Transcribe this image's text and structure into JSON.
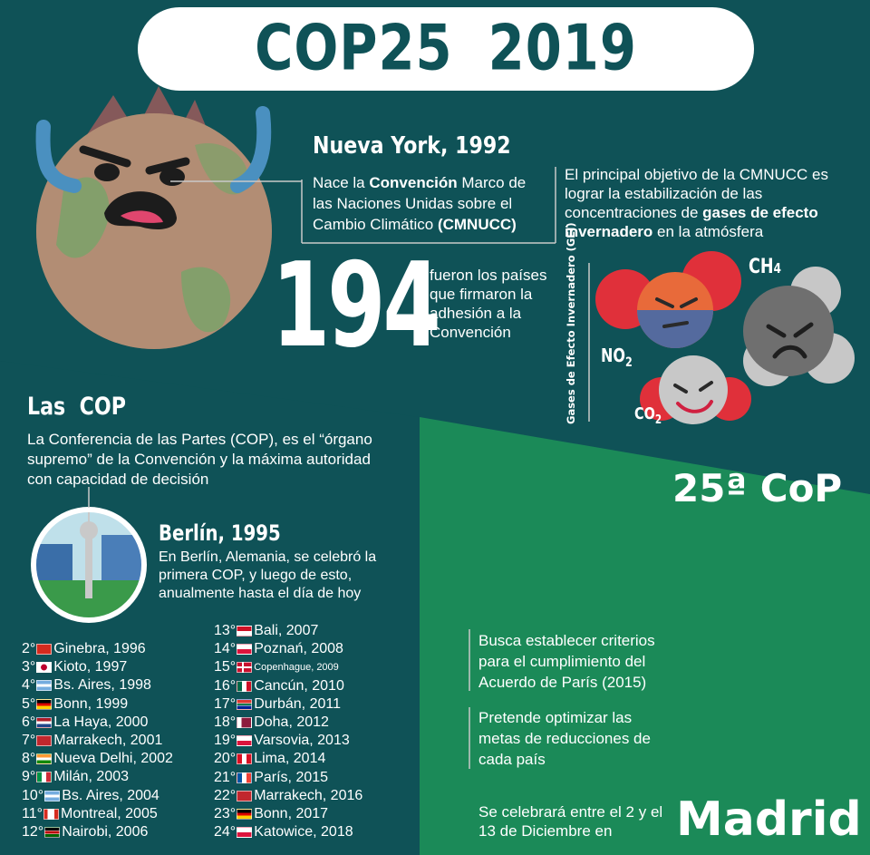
{
  "title": "COP25  2019",
  "nueva_york": {
    "heading": "Nueva York, 1992",
    "text_pre": "Nace la ",
    "text_bold1": "Convención",
    "text_mid": " Marco de las Naciones Unidas sobre el Cambio Climático ",
    "text_bold2": "(CMNUCC)"
  },
  "objective": {
    "text_pre": "El principal objetivo de la CMNUCC es lograr la estabilización de las concentraciones de ",
    "text_bold": "gases de efecto invernadero",
    "text_post": " en la atmósfera"
  },
  "count": {
    "number": "194",
    "text": "fueron los países que firmaron la adhesión a la Convención"
  },
  "gases": {
    "vertical_label": "Gases de Efecto Invernadero (GEI)",
    "ch4": "CH",
    "ch4_sub": "4",
    "no2": "NO",
    "no2_sub": "2",
    "co2": "CO",
    "co2_sub": "2"
  },
  "las_cop": {
    "heading": "Las  COP",
    "text": "La Conferencia de las Partes (COP), es el “órgano supremo” de la Convención y la máxima autoridad con capacidad de decisión"
  },
  "berlin": {
    "heading": "Berlín, 1995",
    "text": "En Berlín, Alemania, se celebró la primera COP, y luego de esto, anualmente hasta el día de hoy"
  },
  "cop25_label": "25ª CoP",
  "cop_list_left": [
    {
      "num": "2°",
      "place": "Ginebra, 1996",
      "flag": "switzerland"
    },
    {
      "num": "3°",
      "place": "Kioto, 1997",
      "flag": "japan"
    },
    {
      "num": "4°",
      "place": "Bs. Aires, 1998",
      "flag": "argentina"
    },
    {
      "num": "5°",
      "place": "Bonn, 1999",
      "flag": "germany"
    },
    {
      "num": "6°",
      "place": "La Haya, 2000",
      "flag": "netherlands"
    },
    {
      "num": "7°",
      "place": "Marrakech, 2001",
      "flag": "morocco"
    },
    {
      "num": "8°",
      "place": "Nueva Delhi, 2002",
      "flag": "india"
    },
    {
      "num": "9°",
      "place": "Milán, 2003",
      "flag": "italy"
    },
    {
      "num": "10°",
      "place": "Bs. Aires, 2004",
      "flag": "argentina"
    },
    {
      "num": "11°",
      "place": "Montreal, 2005",
      "flag": "canada"
    },
    {
      "num": "12°",
      "place": "Nairobi, 2006",
      "flag": "kenya"
    }
  ],
  "cop_list_right": [
    {
      "num": "13°",
      "place": "Bali, 2007",
      "flag": "indonesia"
    },
    {
      "num": "14°",
      "place": "Poznań, 2008",
      "flag": "poland"
    },
    {
      "num": "15°",
      "place": "Copenhague, 2009",
      "flag": "denmark",
      "small": true
    },
    {
      "num": "16°",
      "place": "Cancún, 2010",
      "flag": "mexico"
    },
    {
      "num": "17°",
      "place": "Durbán, 2011",
      "flag": "south-africa"
    },
    {
      "num": "18°",
      "place": "Doha, 2012",
      "flag": "qatar"
    },
    {
      "num": "19°",
      "place": "Varsovia, 2013",
      "flag": "poland"
    },
    {
      "num": "20°",
      "place": "Lima, 2014",
      "flag": "peru"
    },
    {
      "num": "21°",
      "place": "París, 2015",
      "flag": "france"
    },
    {
      "num": "22°",
      "place": "Marrakech, 2016",
      "flag": "morocco"
    },
    {
      "num": "23°",
      "place": "Bonn, 2017",
      "flag": "germany"
    },
    {
      "num": "24°",
      "place": "Katowice, 2018",
      "flag": "poland"
    }
  ],
  "goals": {
    "goal1": "Busca establecer criterios para el cumplimiento del Acuerdo de París (2015)",
    "goal2": "Pretende optimizar las metas de reducciones de cada país"
  },
  "dates": {
    "text": "Se celebrará entre el 2 y el 13 de Diciembre en",
    "city": "Madrid"
  },
  "colors": {
    "teal": "#0f5257",
    "green": "#1a8a57",
    "white": "#ffffff"
  }
}
